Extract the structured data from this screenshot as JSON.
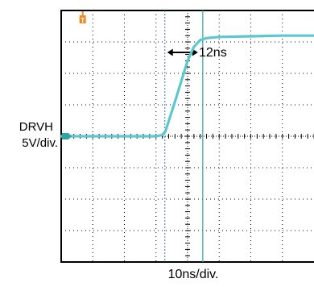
{
  "colors": {
    "trace": "#5bc8cf",
    "trigger_marker": "#f08a24",
    "channel_marker": "#2ea6a6",
    "grid": "#000000",
    "frame": "#000000",
    "cursor_time_a": "#2f7fb0",
    "cursor_time_b": "#2ea6a6"
  },
  "labels": {
    "channel_name": "DRVH",
    "channel_scale": "5V/div.",
    "timebase": "10ns/div.",
    "delta_time": "12ns",
    "trigger_marker_letter": "T"
  },
  "icons": {
    "delta_arrow": "double-headed-horizontal-arrow",
    "trigger_marker": "trigger-position-marker",
    "channel_marker": "channel-ground-marker"
  },
  "chart_data": {
    "type": "line",
    "title": "",
    "xlabel": "10ns/div.",
    "ylabel": "DRVH 5V/div.",
    "x_units": "ns",
    "y_units": "V",
    "xlim": [
      -10,
      70
    ],
    "ylim": [
      -20,
      20
    ],
    "x_divisions": 8,
    "y_divisions": 8,
    "grid": true,
    "series": [
      {
        "x": [
          -10,
          0,
          10,
          20,
          22,
          23,
          26,
          30,
          32,
          34,
          36,
          40,
          50,
          60,
          70
        ],
        "y": [
          0,
          0,
          0,
          0,
          0.2,
          0.8,
          5.5,
          12.0,
          14.2,
          15.3,
          15.6,
          15.8,
          15.9,
          16.0,
          16.0
        ]
      }
    ],
    "time_cursors": [
      22.8,
      34.8
    ],
    "delta_time": "12ns"
  }
}
